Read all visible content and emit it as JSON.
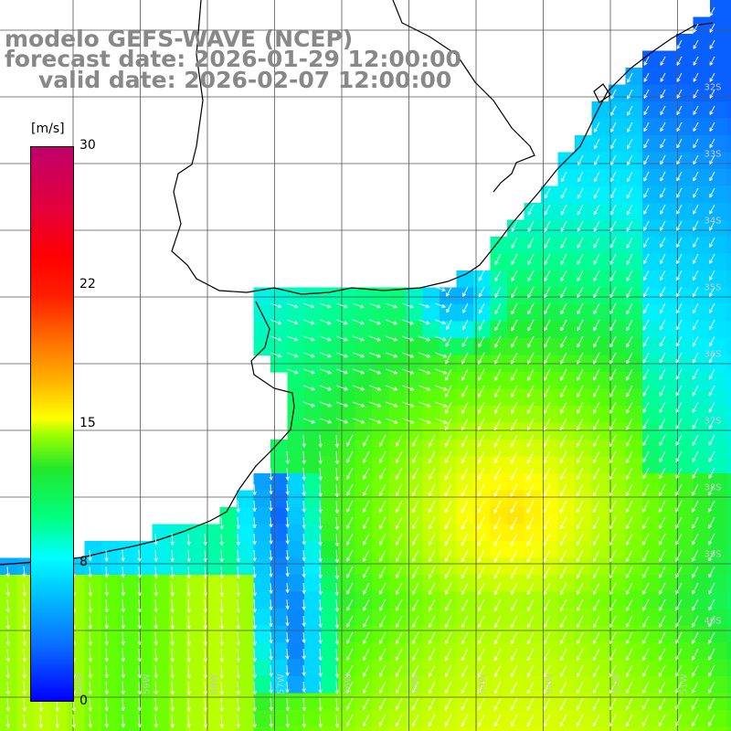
{
  "title": {
    "line1": "modelo GEFS-WAVE (NCEP)",
    "line2": "forecast date: 2026-01-29 12:00:00",
    "line3": "valid date: 2026-02-07 12:00:00"
  },
  "colorbar": {
    "unit": "[m/s]",
    "ticks": [
      "30",
      "22",
      "15",
      "8",
      "0"
    ],
    "tick_values": [
      30,
      22,
      15,
      8,
      0
    ],
    "stops": [
      "#0000ff",
      "#0a6dff",
      "#00c8ff",
      "#00ffff",
      "#00ff80",
      "#22e82a",
      "#9cff00",
      "#ffff00",
      "#ffb000",
      "#ff7000",
      "#ff2000",
      "#ff0000",
      "#c0006a"
    ]
  },
  "map": {
    "lat_labels": [
      "32S",
      "33S",
      "34S",
      "35S",
      "36S",
      "37S",
      "38S",
      "39S",
      "40S"
    ],
    "lon_labels": [
      "60W",
      "59W",
      "58W",
      "57W",
      "56W",
      "55W",
      "54W",
      "53W",
      "52W",
      "51W"
    ],
    "vector_color": "#ffffff",
    "coast_color": "#000000",
    "grid_color": "#555555",
    "label_color": "#c8c8c8"
  }
}
